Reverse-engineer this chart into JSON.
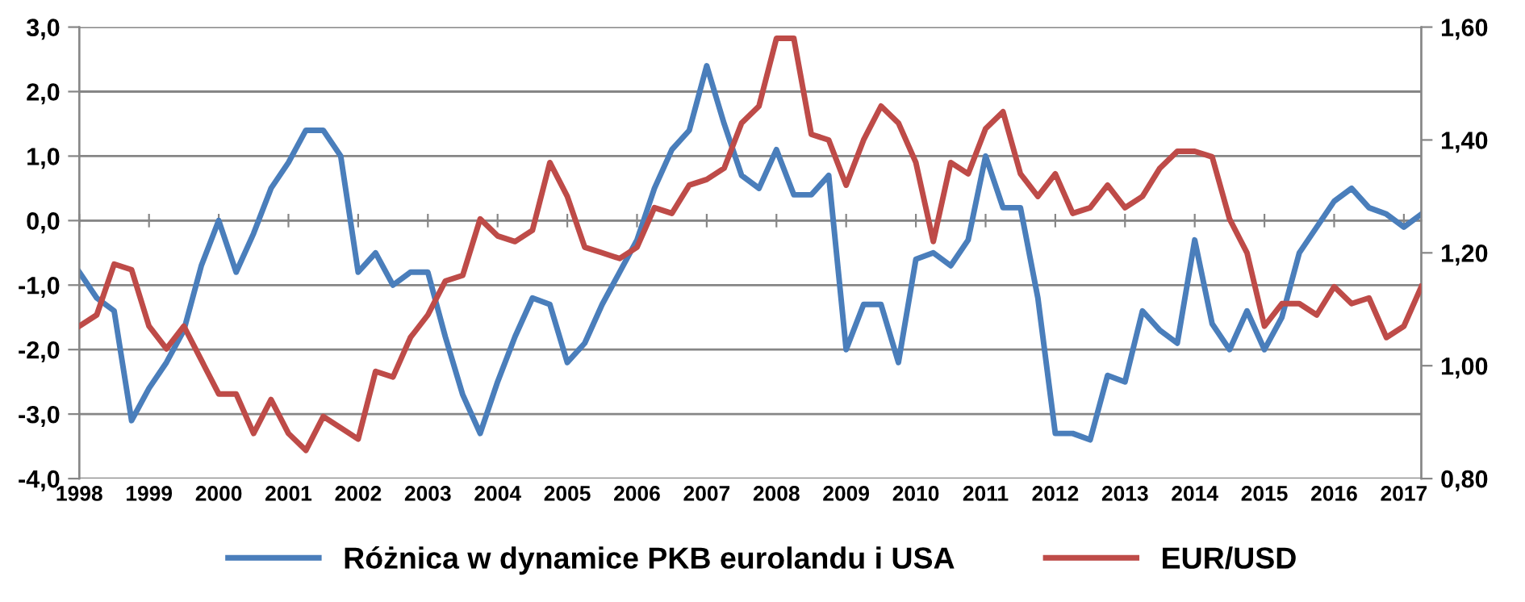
{
  "chart_data": {
    "type": "line",
    "x": [
      1998,
      1998.25,
      1998.5,
      1998.75,
      1999,
      1999.25,
      1999.5,
      1999.75,
      2000,
      2000.25,
      2000.5,
      2000.75,
      2001,
      2001.25,
      2001.5,
      2001.75,
      2002,
      2002.25,
      2002.5,
      2002.75,
      2003,
      2003.25,
      2003.5,
      2003.75,
      2004,
      2004.25,
      2004.5,
      2004.75,
      2005,
      2005.25,
      2005.5,
      2005.75,
      2006,
      2006.25,
      2006.5,
      2006.75,
      2007,
      2007.25,
      2007.5,
      2007.75,
      2008,
      2008.25,
      2008.5,
      2008.75,
      2009,
      2009.25,
      2009.5,
      2009.75,
      2010,
      2010.25,
      2010.5,
      2010.75,
      2011,
      2011.25,
      2011.5,
      2011.75,
      2012,
      2012.25,
      2012.5,
      2012.75,
      2013,
      2013.25,
      2013.5,
      2013.75,
      2014,
      2014.25,
      2014.5,
      2014.75,
      2015,
      2015.25,
      2015.5,
      2015.75,
      2016,
      2016.25,
      2016.5,
      2016.75,
      2017,
      2017.25
    ],
    "series": [
      {
        "name": "Różnica w dynamice PKB eurolandu i USA",
        "color": "#4a7ebb",
        "values": [
          -0.8,
          -1.2,
          -1.4,
          -3.1,
          -2.6,
          -2.2,
          -1.7,
          -0.7,
          0.0,
          -0.8,
          -0.2,
          0.5,
          0.9,
          1.4,
          1.4,
          1.0,
          -0.8,
          -0.5,
          -1.0,
          -0.8,
          -0.8,
          -1.8,
          -2.7,
          -3.3,
          -2.5,
          -1.8,
          -1.2,
          -1.3,
          -2.2,
          -1.9,
          -1.3,
          -0.8,
          -0.3,
          0.5,
          1.1,
          1.4,
          2.4,
          1.5,
          0.7,
          0.5,
          1.1,
          0.4,
          0.4,
          0.7,
          -2.0,
          -1.3,
          -1.3,
          -2.2,
          -0.6,
          -0.5,
          -0.7,
          -0.3,
          1.0,
          0.2,
          0.2,
          -1.2,
          -3.3,
          -3.3,
          -3.4,
          -2.4,
          -2.5,
          -1.4,
          -1.7,
          -1.9,
          -0.3,
          -1.6,
          -2.0,
          -1.4,
          -2.0,
          -1.5,
          -0.5,
          -0.1,
          0.3,
          0.5,
          0.2,
          0.1,
          -0.1,
          0.1
        ]
      },
      {
        "name": "EUR/USD",
        "color": "#be4b48",
        "axis": "y2",
        "values": [
          1.07,
          1.09,
          1.18,
          1.17,
          1.07,
          1.03,
          1.07,
          1.01,
          0.95,
          0.95,
          0.88,
          0.94,
          0.88,
          0.85,
          0.91,
          0.89,
          0.87,
          0.99,
          0.98,
          1.05,
          1.09,
          1.15,
          1.16,
          1.26,
          1.23,
          1.22,
          1.24,
          1.36,
          1.3,
          1.21,
          1.2,
          1.19,
          1.21,
          1.28,
          1.27,
          1.32,
          1.33,
          1.35,
          1.43,
          1.46,
          1.58,
          1.58,
          1.41,
          1.4,
          1.32,
          1.4,
          1.46,
          1.43,
          1.36,
          1.22,
          1.36,
          1.34,
          1.42,
          1.45,
          1.34,
          1.3,
          1.34,
          1.27,
          1.28,
          1.32,
          1.28,
          1.3,
          1.35,
          1.38,
          1.38,
          1.37,
          1.26,
          1.2,
          1.07,
          1.11,
          1.11,
          1.09,
          1.14,
          1.11,
          1.12,
          1.05,
          1.07,
          1.14
        ]
      }
    ],
    "xlim": [
      1998,
      2017.25
    ],
    "xticks": [
      1998,
      1999,
      2000,
      2001,
      2002,
      2003,
      2004,
      2005,
      2006,
      2007,
      2008,
      2009,
      2010,
      2011,
      2012,
      2013,
      2014,
      2015,
      2016,
      2017
    ],
    "ylim": [
      -4,
      3
    ],
    "yticks": [
      {
        "value": -4,
        "label": "-4,0"
      },
      {
        "value": -3,
        "label": "-3,0"
      },
      {
        "value": -2,
        "label": "-2,0"
      },
      {
        "value": -1,
        "label": "-1,0"
      },
      {
        "value": 0,
        "label": "0,0"
      },
      {
        "value": 1,
        "label": "1,0"
      },
      {
        "value": 2,
        "label": "2,0"
      },
      {
        "value": 3,
        "label": "3,0"
      }
    ],
    "y2lim": [
      0.8,
      1.6
    ],
    "y2ticks": [
      {
        "value": 0.8,
        "label": "0,80"
      },
      {
        "value": 1.0,
        "label": "1,00"
      },
      {
        "value": 1.2,
        "label": "1,20"
      },
      {
        "value": 1.4,
        "label": "1,40"
      },
      {
        "value": 1.6,
        "label": "1,60"
      }
    ],
    "grid": "y",
    "legend": "bottom",
    "marker": "none",
    "line_style": "solid"
  }
}
